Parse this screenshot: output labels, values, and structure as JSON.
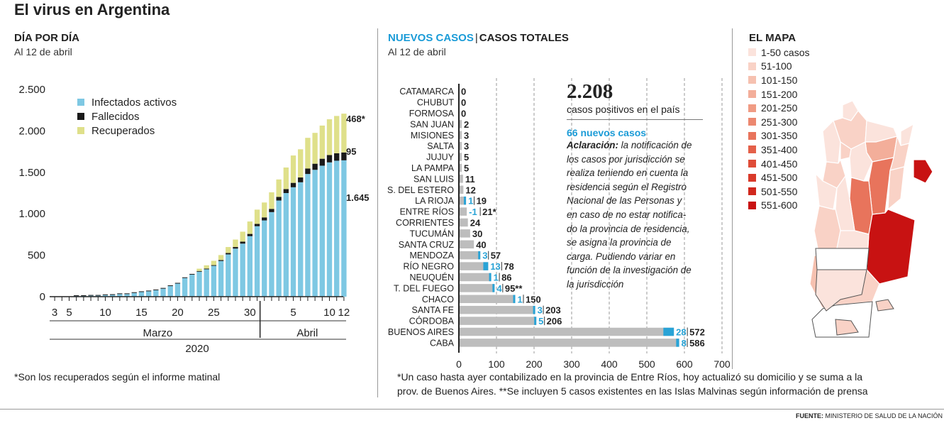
{
  "title": "El virus en Argentina",
  "left_panel": {
    "title": "DÍA POR DÍA",
    "subtitle": "Al 12 de abril",
    "footnote": "*Son los recuperados según el informe matinal"
  },
  "middle_panel": {
    "title_new": "NUEVOS CASOS",
    "title_sep": "|",
    "title_total": "CASOS TOTALES",
    "subtitle": "Al 12 de abril",
    "headline_number": "2.208",
    "headline_text": "casos positivos en el país",
    "new_cases_title": "66 nuevos casos",
    "note_label": "Aclaración:",
    "note_lines": [
      " la notificación de",
      "los casos por jurisdicción se",
      "realiza teniendo en cuenta la",
      "residencia según el Registro",
      "Nacional de las Personas y",
      "en caso de no estar notifica-",
      "do la provincia de residencia,",
      "se asigna la provincia de",
      "carga. Pudiendo variar en",
      "función de la investigación de",
      "la jurisdicción"
    ],
    "footnote_lines": [
      "*Un caso hasta ayer contabilizado en la provincia de Entre Ríos, hoy actualizó su domicilio y se suma a la",
      "prov. de Buenos Aires. **Se incluyen 5 casos existentes en las Islas Malvinas según información de prensa"
    ]
  },
  "map_panel": {
    "title": "EL MAPA",
    "legend": [
      {
        "label": "1-50 casos",
        "color": "#fbe3dc"
      },
      {
        "label": "51-100",
        "color": "#f9d2c6"
      },
      {
        "label": "101-150",
        "color": "#f6c1b0"
      },
      {
        "label": "151-200",
        "color": "#f3ae9a"
      },
      {
        "label": "201-250",
        "color": "#f09b84"
      },
      {
        "label": "251-300",
        "color": "#ec8870"
      },
      {
        "label": "301-350",
        "color": "#e8745c"
      },
      {
        "label": "351-400",
        "color": "#e46049"
      },
      {
        "label": "401-450",
        "color": "#df4c38"
      },
      {
        "label": "451-500",
        "color": "#d93a2a"
      },
      {
        "label": "501-550",
        "color": "#d1281d"
      },
      {
        "label": "551-600",
        "color": "#c81212"
      }
    ]
  },
  "source": {
    "label": "FUENTE:",
    "text": " MINISTERIO DE SALUD DE LA NACIÓN"
  },
  "colors": {
    "active": "#7ec8e3",
    "deaths": "#1a1a1a",
    "recovered": "#dfe08a",
    "bar_gray": "#bdbdbd",
    "new_blue": "#29a3d6",
    "accent_blue": "#1a9bd7"
  },
  "chart_data": [
    {
      "type": "bar",
      "stacked": true,
      "title": "DÍA POR DÍA",
      "xlabel": "2020",
      "ylim": [
        0,
        2500
      ],
      "yticks": [
        0,
        500,
        1000,
        1500,
        2000,
        2500
      ],
      "ytick_labels": [
        "0",
        "500",
        "1.000",
        "1.500",
        "2.000",
        "2.500"
      ],
      "xtick_labels": [
        "3",
        "5",
        "10",
        "15",
        "20",
        "25",
        "30",
        "5",
        "10",
        "12"
      ],
      "month_labels": [
        "Marzo",
        "Abril"
      ],
      "grid": false,
      "legend_position": "top-left",
      "categories": [
        "3 mar",
        "4 mar",
        "5 mar",
        "6 mar",
        "7 mar",
        "8 mar",
        "9 mar",
        "10 mar",
        "11 mar",
        "12 mar",
        "13 mar",
        "14 mar",
        "15 mar",
        "16 mar",
        "17 mar",
        "18 mar",
        "19 mar",
        "20 mar",
        "21 mar",
        "22 mar",
        "23 mar",
        "24 mar",
        "25 mar",
        "26 mar",
        "27 mar",
        "28 mar",
        "29 mar",
        "30 mar",
        "31 mar",
        "1 abr",
        "2 abr",
        "3 abr",
        "4 abr",
        "5 abr",
        "6 abr",
        "7 abr",
        "8 abr",
        "9 abr",
        "10 abr",
        "11 abr",
        "12 abr"
      ],
      "series": [
        {
          "name": "Infectados activos",
          "values": [
            1,
            1,
            2,
            8,
            9,
            12,
            12,
            19,
            21,
            31,
            31,
            45,
            56,
            65,
            78,
            97,
            128,
            158,
            225,
            266,
            301,
            330,
            372,
            430,
            510,
            580,
            640,
            730,
            850,
            920,
            1020,
            1160,
            1250,
            1320,
            1380,
            1480,
            1530,
            1580,
            1620,
            1640,
            1645
          ]
        },
        {
          "name": "Fallecidos",
          "values": [
            0,
            0,
            0,
            1,
            1,
            1,
            1,
            1,
            1,
            1,
            2,
            2,
            2,
            2,
            2,
            2,
            3,
            3,
            4,
            4,
            4,
            6,
            8,
            12,
            17,
            19,
            24,
            27,
            28,
            36,
            39,
            44,
            48,
            53,
            58,
            66,
            74,
            84,
            88,
            90,
            95
          ]
        },
        {
          "name": "Recuperados",
          "values": [
            0,
            0,
            0,
            0,
            0,
            0,
            0,
            0,
            0,
            0,
            0,
            0,
            0,
            0,
            0,
            0,
            0,
            0,
            0,
            0,
            28,
            40,
            52,
            60,
            72,
            90,
            120,
            150,
            172,
            180,
            200,
            210,
            260,
            330,
            340,
            370,
            372,
            400,
            432,
            450,
            468
          ]
        }
      ],
      "end_labels": [
        "468*",
        "95",
        "1.645"
      ]
    },
    {
      "type": "bar",
      "orientation": "horizontal",
      "title": "NUEVOS CASOS | CASOS TOTALES",
      "xlim": [
        0,
        700
      ],
      "xticks": [
        0,
        100,
        200,
        300,
        400,
        500,
        600,
        700
      ],
      "categories": [
        "CATAMARCA",
        "CHUBUT",
        "FORMOSA",
        "SAN JUAN",
        "MISIONES",
        "SALTA",
        "JUJUY",
        "LA PAMPA",
        "SAN LUIS",
        "S. DEL ESTERO",
        "LA RIOJA",
        "ENTRE RÍOS",
        "CORRIENTES",
        "TUCUMÁN",
        "SANTA CRUZ",
        "MENDOZA",
        "RÍO NEGRO",
        "NEUQUÉN",
        "T. DEL FUEGO",
        "CHACO",
        "SANTA FE",
        "CÓRDOBA",
        "BUENOS AIRES",
        "CABA"
      ],
      "series": [
        {
          "name": "Nuevos casos",
          "values": [
            null,
            null,
            null,
            null,
            null,
            null,
            null,
            null,
            null,
            null,
            1,
            -1,
            null,
            null,
            null,
            3,
            13,
            1,
            4,
            1,
            3,
            5,
            28,
            8
          ],
          "labels": [
            "",
            "",
            "",
            "",
            "",
            "",
            "",
            "",
            "",
            "",
            "1",
            "-1",
            "",
            "",
            "",
            "3",
            "13",
            "1",
            "4",
            "1",
            "3",
            "5",
            "28",
            "8"
          ]
        },
        {
          "name": "Casos totales",
          "values": [
            0,
            0,
            0,
            2,
            3,
            3,
            5,
            5,
            11,
            12,
            19,
            21,
            24,
            30,
            40,
            57,
            78,
            86,
            95,
            150,
            203,
            206,
            572,
            586
          ],
          "labels": [
            "0",
            "0",
            "0",
            "2",
            "3",
            "3",
            "5",
            "5",
            "11",
            "12",
            "19",
            "21*",
            "24",
            "30",
            "40",
            "57",
            "78",
            "86",
            "95**",
            "150",
            "203",
            "206",
            "572",
            "586"
          ]
        }
      ]
    }
  ]
}
